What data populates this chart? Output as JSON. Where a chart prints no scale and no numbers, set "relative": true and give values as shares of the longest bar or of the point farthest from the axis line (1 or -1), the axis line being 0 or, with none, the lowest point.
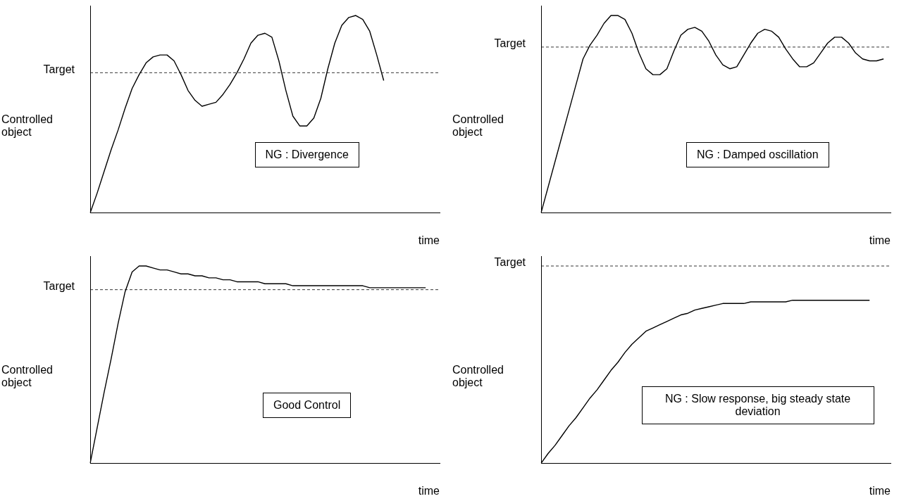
{
  "chart_data": [
    {
      "type": "line",
      "relative": true,
      "marker": "none",
      "xlabel": "time",
      "ylabel": "Controlled object",
      "annotations": [
        "NG : Divergence"
      ],
      "ref_lines": [
        {
          "axis": "y",
          "value": 0.71,
          "label": "Target",
          "line_style": "dashed",
          "color": "#000000"
        }
      ],
      "categories": [
        null,
        null,
        null,
        null,
        null,
        null,
        null,
        null,
        null,
        null,
        null,
        null,
        null,
        null,
        null,
        null,
        null,
        null,
        null,
        null,
        null,
        null,
        null,
        null,
        null,
        null,
        null,
        null,
        null,
        null,
        null,
        null,
        null,
        null,
        null,
        null,
        null,
        null,
        null,
        null,
        null,
        null,
        null,
        null,
        null,
        null,
        null,
        null,
        null,
        null,
        null
      ],
      "series": [
        {
          "color": "#000000",
          "values": [
            0,
            0.1,
            0.21,
            0.32,
            0.42,
            0.53,
            0.63,
            0.7,
            0.76,
            0.79,
            0.8,
            0.8,
            0.77,
            0.7,
            0.62,
            0.57,
            0.54,
            0.55,
            0.56,
            0.6,
            0.65,
            0.71,
            0.78,
            0.86,
            0.9,
            0.91,
            0.89,
            0.77,
            0.62,
            0.49,
            0.44,
            0.44,
            0.48,
            0.58,
            0.73,
            0.86,
            0.95,
            0.99,
            1,
            0.98,
            0.92,
            0.8,
            0.67,
            null,
            null,
            null,
            null,
            null,
            null,
            null,
            null
          ]
        }
      ]
    },
    {
      "type": "line",
      "relative": true,
      "marker": "none",
      "xlabel": "time",
      "ylabel": "Controlled object",
      "annotations": [
        "NG : Damped oscillation"
      ],
      "ref_lines": [
        {
          "axis": "y",
          "value": 0.84,
          "label": "Target",
          "line_style": "dashed",
          "color": "#000000"
        }
      ],
      "categories": [
        null,
        null,
        null,
        null,
        null,
        null,
        null,
        null,
        null,
        null,
        null,
        null,
        null,
        null,
        null,
        null,
        null,
        null,
        null,
        null,
        null,
        null,
        null,
        null,
        null,
        null,
        null,
        null,
        null,
        null,
        null,
        null,
        null,
        null,
        null,
        null,
        null,
        null,
        null,
        null,
        null,
        null,
        null,
        null,
        null,
        null,
        null,
        null,
        null,
        null,
        null
      ],
      "series": [
        {
          "color": "#000000",
          "values": [
            0,
            0.13,
            0.26,
            0.39,
            0.52,
            0.65,
            0.78,
            0.85,
            0.9,
            0.96,
            1,
            1,
            0.98,
            0.91,
            0.81,
            0.73,
            0.7,
            0.7,
            0.73,
            0.82,
            0.9,
            0.93,
            0.94,
            0.92,
            0.87,
            0.8,
            0.75,
            0.73,
            0.74,
            0.8,
            0.86,
            0.91,
            0.93,
            0.92,
            0.89,
            0.83,
            0.78,
            0.74,
            0.74,
            0.76,
            0.81,
            0.86,
            0.89,
            0.89,
            0.86,
            0.81,
            0.78,
            0.77,
            0.77,
            0.78,
            null
          ]
        }
      ]
    },
    {
      "type": "line",
      "relative": true,
      "marker": "none",
      "xlabel": "time",
      "ylabel": "Controlled object",
      "annotations": [
        "Good Control"
      ],
      "ref_lines": [
        {
          "axis": "y",
          "value": 0.88,
          "label": "Target",
          "line_style": "dashed",
          "color": "#000000"
        }
      ],
      "categories": [
        null,
        null,
        null,
        null,
        null,
        null,
        null,
        null,
        null,
        null,
        null,
        null,
        null,
        null,
        null,
        null,
        null,
        null,
        null,
        null,
        null,
        null,
        null,
        null,
        null,
        null,
        null,
        null,
        null,
        null,
        null,
        null,
        null,
        null,
        null,
        null,
        null,
        null,
        null,
        null,
        null,
        null,
        null,
        null,
        null,
        null,
        null,
        null,
        null,
        null,
        null
      ],
      "series": [
        {
          "color": "#000000",
          "values": [
            0,
            0.18,
            0.36,
            0.53,
            0.71,
            0.87,
            0.97,
            1,
            1,
            0.99,
            0.98,
            0.98,
            0.97,
            0.96,
            0.96,
            0.95,
            0.95,
            0.94,
            0.94,
            0.93,
            0.93,
            0.92,
            0.92,
            0.92,
            0.92,
            0.91,
            0.91,
            0.91,
            0.91,
            0.9,
            0.9,
            0.9,
            0.9,
            0.9,
            0.9,
            0.9,
            0.9,
            0.9,
            0.9,
            0.9,
            0.89,
            0.89,
            0.89,
            0.89,
            0.89,
            0.89,
            0.89,
            0.89,
            0.89,
            null,
            null
          ]
        }
      ]
    },
    {
      "type": "line",
      "relative": true,
      "marker": "none",
      "xlabel": "time",
      "ylabel": "Controlled object",
      "annotations": [
        "NG : Slow response, big steady state deviation"
      ],
      "ref_lines": [
        {
          "axis": "y",
          "value": 1.21,
          "label": "Target",
          "line_style": "dashed",
          "color": "#000000"
        }
      ],
      "categories": [
        null,
        null,
        null,
        null,
        null,
        null,
        null,
        null,
        null,
        null,
        null,
        null,
        null,
        null,
        null,
        null,
        null,
        null,
        null,
        null,
        null,
        null,
        null,
        null,
        null,
        null,
        null,
        null,
        null,
        null,
        null,
        null,
        null,
        null,
        null,
        null,
        null,
        null,
        null,
        null,
        null,
        null,
        null,
        null,
        null,
        null,
        null,
        null,
        null,
        null,
        null
      ],
      "series": [
        {
          "color": "#000000",
          "values": [
            0,
            0.06,
            0.11,
            0.17,
            0.23,
            0.28,
            0.34,
            0.4,
            0.45,
            0.51,
            0.57,
            0.62,
            0.68,
            0.73,
            0.77,
            0.81,
            0.83,
            0.85,
            0.87,
            0.89,
            0.91,
            0.92,
            0.94,
            0.95,
            0.96,
            0.97,
            0.98,
            0.98,
            0.98,
            0.98,
            0.99,
            0.99,
            0.99,
            0.99,
            0.99,
            0.99,
            1,
            1,
            1,
            1,
            1,
            1,
            1,
            1,
            1,
            1,
            1,
            1,
            null,
            null,
            null
          ]
        }
      ]
    }
  ]
}
